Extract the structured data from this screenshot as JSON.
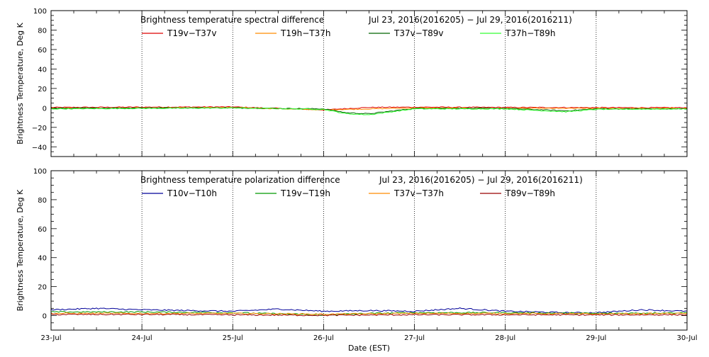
{
  "chart_data": [
    {
      "type": "line",
      "title": "Brightness temperature spectral difference",
      "date_range": "Jul 23, 2016(2016205) − Jul 29, 2016(2016211)",
      "ylabel": "Brightness Temperature, Deg K",
      "ylim": [
        -50,
        100
      ],
      "yticks": [
        -40,
        -20,
        0,
        20,
        40,
        60,
        80,
        100
      ],
      "xlim": [
        "2016-07-23",
        "2016-07-30"
      ],
      "grid": "vertical dotted lines at each day",
      "legend_position": "top",
      "series": [
        {
          "name": "T19v−T37v",
          "color": "#dd0000",
          "x": [
            "2016-07-23",
            "2016-07-24",
            "2016-07-25",
            "2016-07-26",
            "2016-07-26T12:00",
            "2016-07-27",
            "2016-07-28",
            "2016-07-29",
            "2016-07-30"
          ],
          "values": [
            0.5,
            0.8,
            1.0,
            -2,
            0.5,
            0.8,
            0.5,
            0.3,
            0.2
          ]
        },
        {
          "name": "T19h−T37h",
          "color": "#ff8c00",
          "x": [
            "2016-07-23",
            "2016-07-24",
            "2016-07-25",
            "2016-07-26",
            "2016-07-26T12:00",
            "2016-07-27",
            "2016-07-28",
            "2016-07-29",
            "2016-07-30"
          ],
          "values": [
            -0.5,
            0,
            0.3,
            -2,
            -1,
            0,
            -0.5,
            -0.5,
            -0.5
          ]
        },
        {
          "name": "T37v−T89v",
          "color": "#006400",
          "x": [
            "2016-07-23",
            "2016-07-24",
            "2016-07-25",
            "2016-07-26",
            "2016-07-26T06:00",
            "2016-07-26T12:00",
            "2016-07-27",
            "2016-07-28",
            "2016-07-28T16:00",
            "2016-07-29",
            "2016-07-30"
          ],
          "values": [
            -0.5,
            0,
            0,
            -1,
            -5,
            -6,
            -0.5,
            -0.5,
            -3,
            -1,
            -1
          ]
        },
        {
          "name": "T37h−T89h",
          "color": "#33ff33",
          "x": [
            "2016-07-23",
            "2016-07-24",
            "2016-07-25",
            "2016-07-26",
            "2016-07-26T06:00",
            "2016-07-26T12:00",
            "2016-07-27",
            "2016-07-28",
            "2016-07-28T16:00",
            "2016-07-29",
            "2016-07-30"
          ],
          "values": [
            -1,
            -0.5,
            0,
            -1.5,
            -6,
            -7,
            -1,
            -1,
            -4,
            -1.5,
            -1
          ]
        }
      ]
    },
    {
      "type": "line",
      "title": "Brightness temperature polarization difference",
      "date_range": "Jul 23, 2016(2016205) − Jul 29, 2016(2016211)",
      "xlabel": "Date (EST)",
      "ylabel": "Brightness Temperature, Deg K",
      "ylim": [
        -10,
        100
      ],
      "yticks": [
        0,
        20,
        40,
        60,
        80,
        100
      ],
      "xlim": [
        "2016-07-23",
        "2016-07-30"
      ],
      "xticks": [
        "23-Jul",
        "24-Jul",
        "25-Jul",
        "26-Jul",
        "27-Jul",
        "28-Jul",
        "29-Jul",
        "30-Jul"
      ],
      "grid": "vertical dotted lines at each day",
      "legend_position": "top",
      "series": [
        {
          "name": "T10v−T10h",
          "color": "#000099",
          "x": [
            "2016-07-23",
            "2016-07-23T12:00",
            "2016-07-24",
            "2016-07-25",
            "2016-07-25T12:00",
            "2016-07-26",
            "2016-07-26T12:00",
            "2016-07-27",
            "2016-07-27T12:00",
            "2016-07-28",
            "2016-07-28T16:00",
            "2016-07-29",
            "2016-07-29T12:00",
            "2016-07-30"
          ],
          "values": [
            4,
            5,
            4,
            3,
            4.5,
            3,
            3.5,
            3,
            5,
            3,
            2,
            2,
            4,
            3
          ]
        },
        {
          "name": "T19v−T19h",
          "color": "#009900",
          "x": [
            "2016-07-23",
            "2016-07-24",
            "2016-07-25",
            "2016-07-26",
            "2016-07-26T12:00",
            "2016-07-27",
            "2016-07-28",
            "2016-07-29",
            "2016-07-30"
          ],
          "values": [
            2.5,
            2.5,
            2,
            0.5,
            1.5,
            2,
            2,
            1.5,
            2
          ]
        },
        {
          "name": "T37v−T37h",
          "color": "#ff8c00",
          "x": [
            "2016-07-23",
            "2016-07-24",
            "2016-07-25",
            "2016-07-26",
            "2016-07-27",
            "2016-07-28",
            "2016-07-29",
            "2016-07-30"
          ],
          "values": [
            1.5,
            1.5,
            1.5,
            1,
            1.5,
            1.5,
            1.2,
            1.5
          ]
        },
        {
          "name": "T89v−T89h",
          "color": "#990000",
          "x": [
            "2016-07-23",
            "2016-07-24",
            "2016-07-25",
            "2016-07-26",
            "2016-07-27",
            "2016-07-28",
            "2016-07-29",
            "2016-07-30"
          ],
          "values": [
            0.8,
            0.8,
            0.5,
            0.2,
            0.6,
            0.6,
            0.5,
            0.6
          ]
        }
      ]
    }
  ]
}
